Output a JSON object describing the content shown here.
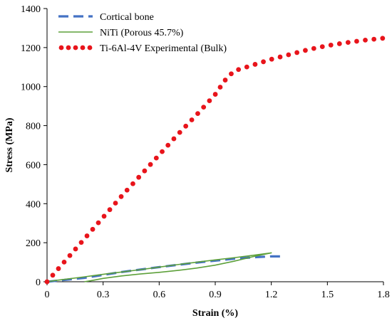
{
  "chart_data": {
    "type": "line",
    "title": "",
    "xlabel": "Strain (%)",
    "ylabel": "Stress (MPa)",
    "xlim": [
      0,
      1.8
    ],
    "ylim": [
      0,
      1400
    ],
    "x_ticks": [
      "0",
      "0.3",
      "0.6",
      "0.9",
      "1.2",
      "1.5",
      "1.8"
    ],
    "y_ticks": [
      "0",
      "200",
      "400",
      "600",
      "800",
      "1000",
      "1200",
      "1400"
    ],
    "grid": false,
    "legend_position": "top-left",
    "series": [
      {
        "name": "Cortical bone",
        "color": "#4472C4",
        "style": "dashed",
        "x": [
          0,
          0.2,
          0.4,
          0.6,
          0.8,
          1.0,
          1.1,
          1.2,
          1.26
        ],
        "y": [
          0,
          20,
          50,
          75,
          98,
          118,
          125,
          130,
          130
        ]
      },
      {
        "name": "NiTi (Porous 45.7%)",
        "color": "#5DA03A",
        "style": "solid",
        "x": [
          0,
          0.05,
          0.1,
          0.2,
          0.3,
          0.4,
          0.5,
          0.6,
          0.7,
          0.8,
          0.9,
          1.0,
          1.1,
          1.2,
          1.15,
          1.1,
          1.0,
          0.9,
          0.8,
          0.7,
          0.6,
          0.5,
          0.4,
          0.3,
          0.25,
          0.2
        ],
        "y": [
          0,
          7,
          13,
          25,
          38,
          50,
          62,
          75,
          88,
          100,
          112,
          123,
          135,
          148,
          138,
          128,
          105,
          85,
          70,
          58,
          48,
          40,
          30,
          17,
          8,
          0
        ]
      },
      {
        "name": "Ti-6Al-4V Experimental (Bulk)",
        "color": "#E8141B",
        "style": "dotted",
        "x": [
          0,
          0.1,
          0.2,
          0.3,
          0.4,
          0.5,
          0.6,
          0.7,
          0.8,
          0.9,
          0.95,
          1.0,
          1.1,
          1.2,
          1.3,
          1.4,
          1.5,
          1.6,
          1.7,
          1.8
        ],
        "y": [
          0,
          110,
          220,
          330,
          440,
          545,
          650,
          755,
          855,
          960,
          1030,
          1080,
          1110,
          1140,
          1165,
          1190,
          1210,
          1225,
          1238,
          1248
        ]
      }
    ]
  }
}
